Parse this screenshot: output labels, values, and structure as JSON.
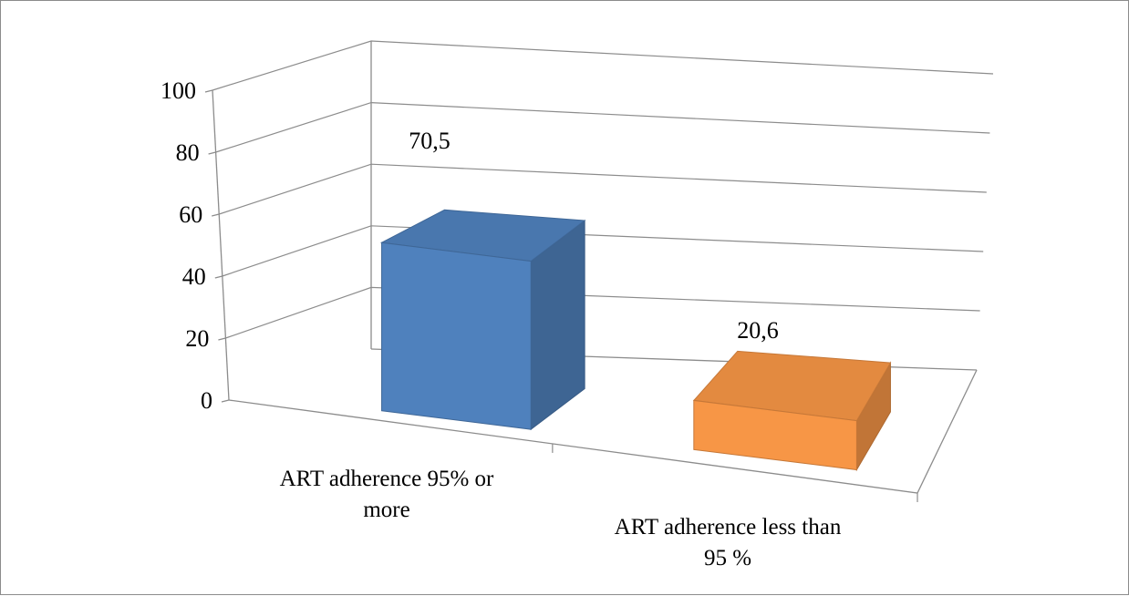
{
  "chart_data": {
    "type": "bar",
    "title": "",
    "xlabel": "",
    "ylabel": "",
    "ylim": [
      0,
      100
    ],
    "yticks": [
      0,
      20,
      40,
      60,
      80,
      100
    ],
    "grid": true,
    "three_d": true,
    "categories": [
      [
        "ART adherence 95% or",
        "more"
      ],
      [
        "ART adherence less than",
        "95 %"
      ]
    ],
    "values": [
      70.5,
      20.6
    ],
    "data_labels": [
      "70,5",
      "20,6"
    ],
    "colors": [
      "#4f81bd",
      "#f79646"
    ]
  }
}
